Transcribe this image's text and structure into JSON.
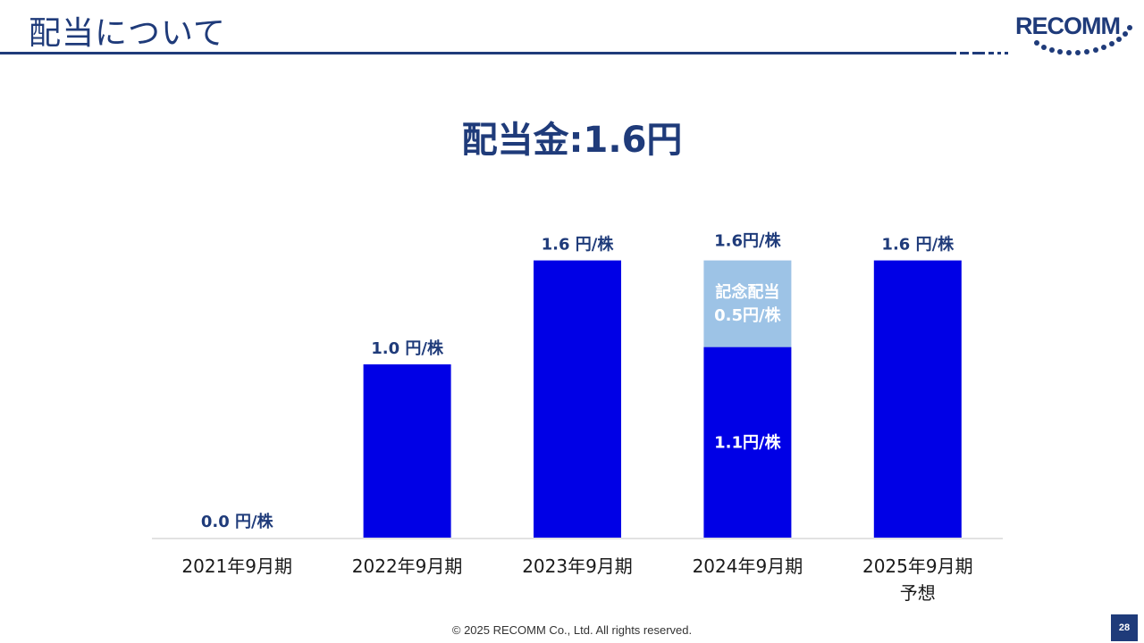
{
  "slide": {
    "title": "配当について",
    "headline": "配当金:1.6円",
    "logo_text": "RECOMM",
    "footer": "© 2025 RECOMM Co., Ltd. All rights reserved.",
    "page_number": "28"
  },
  "colors": {
    "brand": "#1f3b7a",
    "bar": "#0000e6",
    "commemorative": "#9dc3e6",
    "axis": "#d9d9d9"
  },
  "chart_data": {
    "type": "bar",
    "stacked": true,
    "categories": [
      [
        "2021年9月期"
      ],
      [
        "2022年9月期"
      ],
      [
        "2023年9月期"
      ],
      [
        "2024年9月期"
      ],
      [
        "2025年9月期",
        "予想"
      ]
    ],
    "series": [
      {
        "values": [
          0.0,
          1.0,
          1.6,
          1.1,
          1.6
        ]
      },
      {
        "values": [
          0,
          0,
          0,
          0.5,
          0
        ]
      }
    ],
    "total_labels": [
      "0.0 円/株",
      "1.0 円/株",
      "1.6 円/株",
      "1.6円/株",
      "1.6 円/株"
    ],
    "segment_labels": [
      {
        "category": 3,
        "series": 0,
        "lines": [
          "1.1円/株"
        ]
      },
      {
        "category": 3,
        "series": 1,
        "lines": [
          "記念配当",
          "0.5円/株"
        ]
      }
    ],
    "ylim": [
      0,
      2.0
    ],
    "grid": false,
    "legend": "none",
    "title": "",
    "xlabel": "",
    "ylabel": ""
  }
}
